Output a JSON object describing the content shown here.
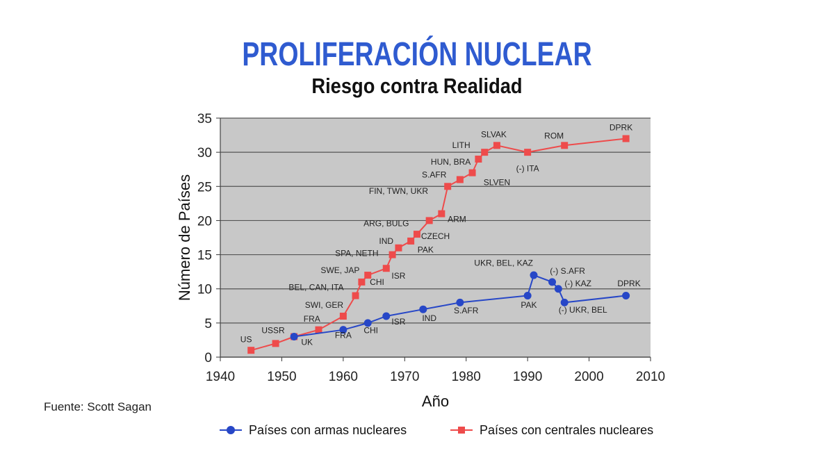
{
  "title": "PROLIFERACIÓN NUCLEAR",
  "subtitle": "Riesgo contra Realidad",
  "source": "Fuente: Scott Sagan",
  "colors": {
    "title": "#2f5bd0",
    "weapons": "#2747c7",
    "plants": "#ee4b4b",
    "plot_bg": "#c8c8c8",
    "grid": "#555555"
  },
  "chart_data": {
    "type": "line",
    "xlabel": "Año",
    "ylabel": "Número de Países",
    "xlim": [
      1940,
      2010
    ],
    "ylim": [
      0,
      35
    ],
    "x_ticks": [
      1940,
      1950,
      1960,
      1970,
      1980,
      1990,
      2000,
      2010
    ],
    "y_ticks": [
      0,
      5,
      10,
      15,
      20,
      25,
      30,
      35
    ],
    "grid": "horizontal",
    "legend_position": "bottom",
    "series": [
      {
        "name": "Países con armas nucleares",
        "marker": "circle",
        "points": [
          {
            "x": 1952,
            "y": 3
          },
          {
            "x": 1960,
            "y": 4
          },
          {
            "x": 1964,
            "y": 5
          },
          {
            "x": 1967,
            "y": 6
          },
          {
            "x": 1973,
            "y": 7
          },
          {
            "x": 1979,
            "y": 8
          },
          {
            "x": 1990,
            "y": 9
          },
          {
            "x": 1991,
            "y": 12
          },
          {
            "x": 1994,
            "y": 11
          },
          {
            "x": 1995,
            "y": 10
          },
          {
            "x": 1996,
            "y": 8
          },
          {
            "x": 2006,
            "y": 9
          }
        ]
      },
      {
        "name": "Países con centrales nucleares",
        "marker": "square",
        "points": [
          {
            "x": 1945,
            "y": 1
          },
          {
            "x": 1949,
            "y": 2
          },
          {
            "x": 1952,
            "y": 3
          },
          {
            "x": 1956,
            "y": 4
          },
          {
            "x": 1960,
            "y": 6
          },
          {
            "x": 1962,
            "y": 9
          },
          {
            "x": 1963,
            "y": 11
          },
          {
            "x": 1964,
            "y": 12
          },
          {
            "x": 1967,
            "y": 13
          },
          {
            "x": 1968,
            "y": 15
          },
          {
            "x": 1969,
            "y": 16
          },
          {
            "x": 1971,
            "y": 17
          },
          {
            "x": 1972,
            "y": 18
          },
          {
            "x": 1974,
            "y": 20
          },
          {
            "x": 1976,
            "y": 21
          },
          {
            "x": 1977,
            "y": 25
          },
          {
            "x": 1979,
            "y": 26
          },
          {
            "x": 1981,
            "y": 27
          },
          {
            "x": 1982,
            "y": 29
          },
          {
            "x": 1983,
            "y": 30
          },
          {
            "x": 1985,
            "y": 31
          },
          {
            "x": 1990,
            "y": 30
          },
          {
            "x": 1996,
            "y": 31
          },
          {
            "x": 2006,
            "y": 32
          }
        ]
      }
    ],
    "annotations": [
      {
        "text": "US",
        "x": 1944.2,
        "y": 2.2
      },
      {
        "text": "USSR",
        "x": 1948.6,
        "y": 3.5
      },
      {
        "text": "UK",
        "x": 1954.1,
        "y": 1.8
      },
      {
        "text": "FRA",
        "x": 1954.9,
        "y": 5.2
      },
      {
        "text": "SWI, GER",
        "x": 1956.9,
        "y": 7.2
      },
      {
        "text": "FRA",
        "x": 1960,
        "y": 2.8
      },
      {
        "text": "BEL, CAN, ITA",
        "x": 1955.6,
        "y": 9.8
      },
      {
        "text": "CHI",
        "x": 1964.5,
        "y": 3.5
      },
      {
        "text": "SWE, JAP",
        "x": 1959.5,
        "y": 12.3
      },
      {
        "text": "CHI",
        "x": 1965.5,
        "y": 10.6
      },
      {
        "text": "ISR",
        "x": 1969.0,
        "y": 11.5
      },
      {
        "text": "ISR",
        "x": 1969.0,
        "y": 4.8
      },
      {
        "text": "SPA, NETH",
        "x": 1962.2,
        "y": 14.8
      },
      {
        "text": "PAK",
        "x": 1973.4,
        "y": 15.3
      },
      {
        "text": "IND",
        "x": 1967.0,
        "y": 16.6
      },
      {
        "text": "CZECH",
        "x": 1975.0,
        "y": 17.3
      },
      {
        "text": "ARG, BULG",
        "x": 1967.0,
        "y": 19.2
      },
      {
        "text": "ARM",
        "x": 1978.5,
        "y": 19.8
      },
      {
        "text": "FIN, TWN, UKR",
        "x": 1969.0,
        "y": 23.9
      },
      {
        "text": "S.AFR",
        "x": 1974.8,
        "y": 26.3
      },
      {
        "text": "SLVEN",
        "x": 1985.0,
        "y": 25.2
      },
      {
        "text": "HUN, BRA",
        "x": 1977.5,
        "y": 28.2
      },
      {
        "text": "LITH",
        "x": 1979.2,
        "y": 30.6
      },
      {
        "text": "SLVAK",
        "x": 1984.5,
        "y": 32.2
      },
      {
        "text": "(-) ITA",
        "x": 1990.0,
        "y": 27.2
      },
      {
        "text": "ROM",
        "x": 1994.3,
        "y": 32.0
      },
      {
        "text": "DPRK",
        "x": 2005.2,
        "y": 33.2
      },
      {
        "text": "IND",
        "x": 1974.0,
        "y": 5.3
      },
      {
        "text": "S.AFR",
        "x": 1980.0,
        "y": 6.4
      },
      {
        "text": "UKR, BEL, KAZ",
        "x": 1986.1,
        "y": 13.4
      },
      {
        "text": "PAK",
        "x": 1990.2,
        "y": 7.2
      },
      {
        "text": "(-) S.AFR",
        "x": 1996.5,
        "y": 12.2
      },
      {
        "text": "(-) KAZ",
        "x": 1998.2,
        "y": 10.4
      },
      {
        "text": "(-) UKR, BEL",
        "x": 1999.0,
        "y": 6.5
      },
      {
        "text": "DPRK",
        "x": 2006.5,
        "y": 10.4
      }
    ]
  },
  "legend": {
    "weapons_label": "Países con armas nucleares",
    "plants_label": "Países con centrales nucleares"
  }
}
